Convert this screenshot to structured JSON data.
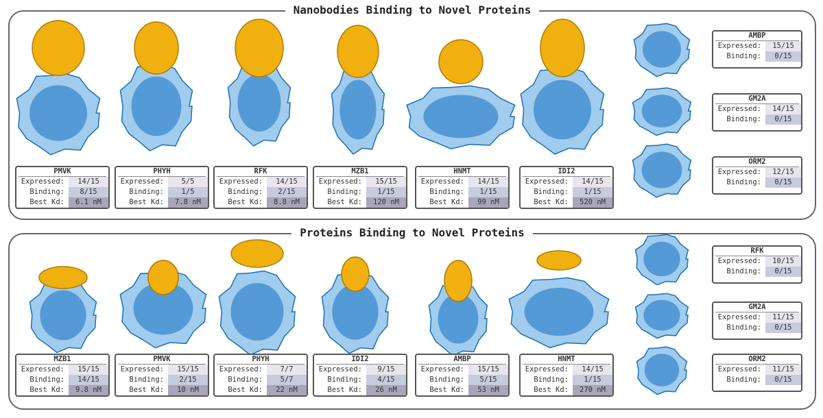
{
  "colors": {
    "target": "#2f8fd8",
    "binder": "#f0b010",
    "expressed": "#e6e6ec",
    "binding": "#c6cbdd",
    "kd": "#a9a6b9"
  },
  "labels": {
    "expressed": "Expressed:",
    "binding": "Binding:",
    "kd": "Best Kd:"
  },
  "top": {
    "title": "Nanobodies Binding to Novel Proteins",
    "cards": [
      {
        "name": "PMVK",
        "expressed": "14/15",
        "binding": "8/15",
        "kd": "6.1 nM"
      },
      {
        "name": "PHYH",
        "expressed": "5/5",
        "binding": "1/5",
        "kd": "7.8 nM"
      },
      {
        "name": "RFK",
        "expressed": "14/15",
        "binding": "2/15",
        "kd": "8.8 nM"
      },
      {
        "name": "MZB1",
        "expressed": "15/15",
        "binding": "1/15",
        "kd": "120 nM"
      },
      {
        "name": "HNMT",
        "expressed": "14/15",
        "binding": "1/15",
        "kd": "99 nM"
      },
      {
        "name": "IDI2",
        "expressed": "14/15",
        "binding": "1/15",
        "kd": "520 nM"
      }
    ],
    "side": [
      {
        "name": "AMBP",
        "expressed": "15/15",
        "binding": "0/15"
      },
      {
        "name": "GM2A",
        "expressed": "14/15",
        "binding": "0/15"
      },
      {
        "name": "ORM2",
        "expressed": "12/15",
        "binding": "0/15"
      }
    ]
  },
  "bottom": {
    "title": "Proteins Binding to Novel Proteins",
    "cards": [
      {
        "name": "MZB1",
        "expressed": "15/15",
        "binding": "14/15",
        "kd": "9.8 nM"
      },
      {
        "name": "PMVK",
        "expressed": "15/15",
        "binding": "2/15",
        "kd": "10 nM"
      },
      {
        "name": "PHYH",
        "expressed": "7/7",
        "binding": "5/7",
        "kd": "22 nM"
      },
      {
        "name": "IDI2",
        "expressed": "9/15",
        "binding": "4/15",
        "kd": "26 nM"
      },
      {
        "name": "AMBP",
        "expressed": "15/15",
        "binding": "5/15",
        "kd": "53 nM"
      },
      {
        "name": "HNMT",
        "expressed": "14/15",
        "binding": "1/15",
        "kd": "270 nM"
      }
    ],
    "side": [
      {
        "name": "RFK",
        "expressed": "10/15",
        "binding": "0/15"
      },
      {
        "name": "GM2A",
        "expressed": "11/15",
        "binding": "0/15"
      },
      {
        "name": "ORM2",
        "expressed": "11/15",
        "binding": "0/15"
      }
    ]
  }
}
